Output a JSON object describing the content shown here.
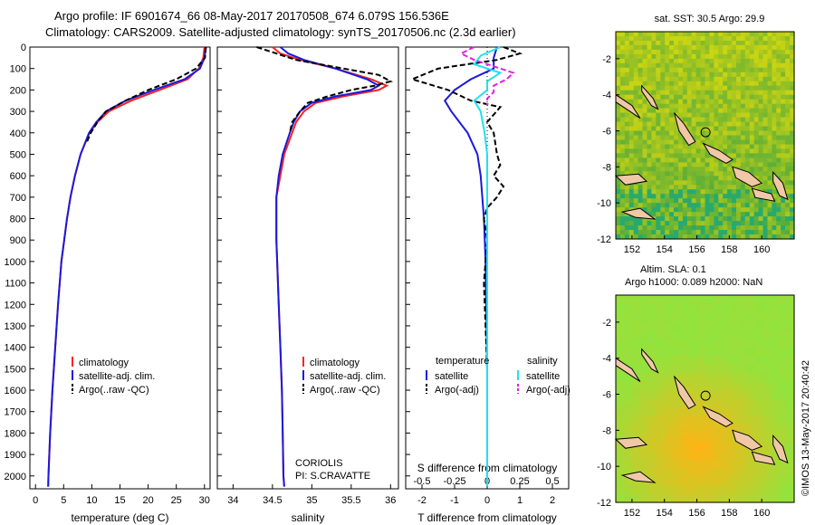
{
  "header": {
    "line1": "Argo profile: IF 6901674_66 08-May-2017 20170508_674 6.079S 156.536E",
    "line2": "Climatology: CARS2009. Satellite-adjusted climatology: synTS_20170506.nc (2.3d earlier)"
  },
  "side_label": "©IMOS 13-May-2017 20:40:42",
  "colors": {
    "climatology": "#ff2020",
    "satellite": "#1a1adc",
    "argo": "#000000",
    "sat_salinity": "#22e0ee",
    "argo_salinity": "#e020e0"
  },
  "chart_data": [
    {
      "type": "line",
      "panel": "temperature",
      "xlabel": "temperature (deg C)",
      "ylabel": "",
      "xlim": [
        -1,
        31
      ],
      "ylim": [
        2060,
        0
      ],
      "xticks": [
        0,
        5,
        10,
        15,
        20,
        25,
        30
      ],
      "xtick_labels": [
        "0",
        "5",
        "10",
        "15",
        "20",
        "25",
        "30"
      ],
      "yticks": [
        0,
        100,
        200,
        300,
        400,
        500,
        600,
        700,
        800,
        900,
        1000,
        1100,
        1200,
        1300,
        1400,
        1500,
        1600,
        1700,
        1800,
        1900,
        2000
      ],
      "ytick_labels": [
        "0",
        "100",
        "200",
        "300",
        "400",
        "500",
        "600",
        "700",
        "800",
        "900",
        "1000",
        "1100",
        "1200",
        "1300",
        "1400",
        "1500",
        "1600",
        "1700",
        "1800",
        "1900",
        "2000"
      ],
      "legend": [
        "climatology",
        "satellite-adj. clim.",
        "Argo(..raw -QC)"
      ],
      "series": [
        {
          "name": "climatology",
          "color": "#ff2020",
          "dash": "",
          "depth": [
            0,
            50,
            100,
            150,
            200,
            250,
            300,
            350,
            400,
            500,
            600,
            700,
            800,
            900,
            1000,
            1200,
            1400,
            1600,
            1800,
            2000,
            2050
          ],
          "values": [
            30.0,
            29.8,
            29.0,
            27.0,
            22.0,
            17.0,
            13.0,
            11.0,
            9.6,
            8.0,
            7.0,
            6.2,
            5.6,
            5.1,
            4.6,
            4.0,
            3.5,
            3.0,
            2.6,
            2.3,
            2.25
          ]
        },
        {
          "name": "satellite-adj. clim.",
          "color": "#1a1adc",
          "dash": "",
          "depth": [
            0,
            50,
            100,
            150,
            200,
            250,
            300,
            350,
            400,
            500,
            600,
            700,
            800,
            900,
            1000,
            1200,
            1400,
            1600,
            1800,
            2000,
            2050
          ],
          "values": [
            30.3,
            30.0,
            29.2,
            26.5,
            21.0,
            16.0,
            12.5,
            10.8,
            9.5,
            8.0,
            7.0,
            6.2,
            5.6,
            5.1,
            4.6,
            4.0,
            3.5,
            3.0,
            2.6,
            2.3,
            2.25
          ]
        },
        {
          "name": "Argo(..raw -QC)",
          "color": "#000000",
          "dash": "6,3",
          "depth": [
            0,
            50,
            100,
            150,
            200,
            250,
            300,
            350,
            400,
            450
          ],
          "values": [
            30.2,
            30.1,
            28.5,
            25.0,
            20.0,
            16.0,
            12.5,
            11.0,
            9.8,
            9.0
          ]
        }
      ]
    },
    {
      "type": "line",
      "panel": "salinity",
      "xlabel": "salinity",
      "ylabel": "",
      "xlim": [
        33.8,
        36.1
      ],
      "ylim": [
        2060,
        0
      ],
      "xticks": [
        34,
        34.5,
        35,
        35.5,
        36
      ],
      "xtick_labels": [
        "34",
        "34.5",
        "35",
        "35.5",
        "36"
      ],
      "legend": [
        "climatology",
        "satellite-adj. clim.",
        "Argo(..raw -QC)"
      ],
      "annotation": [
        "CORIOLIS",
        "PI: S.CRAVATTE"
      ],
      "series": [
        {
          "name": "climatology",
          "color": "#ff2020",
          "dash": "",
          "depth": [
            0,
            30,
            60,
            100,
            150,
            180,
            200,
            230,
            260,
            300,
            350,
            400,
            500,
            600,
            700,
            800,
            900,
            1000,
            1200,
            1400,
            1600,
            1800,
            2000,
            2050
          ],
          "values": [
            34.5,
            34.6,
            34.85,
            35.3,
            35.75,
            35.95,
            35.85,
            35.4,
            35.05,
            34.9,
            34.8,
            34.75,
            34.65,
            34.6,
            34.55,
            34.55,
            34.55,
            34.56,
            34.58,
            34.6,
            34.62,
            34.63,
            34.64,
            34.65
          ]
        },
        {
          "name": "satellite-adj. clim.",
          "color": "#1a1adc",
          "dash": "",
          "depth": [
            0,
            30,
            60,
            100,
            150,
            180,
            200,
            230,
            260,
            300,
            350,
            400,
            500,
            600,
            700,
            800,
            900,
            1000,
            1200,
            1400,
            1600,
            1800,
            2000,
            2050
          ],
          "values": [
            34.6,
            34.7,
            34.9,
            35.3,
            35.7,
            35.85,
            35.75,
            35.3,
            35.0,
            34.85,
            34.77,
            34.72,
            34.63,
            34.58,
            34.55,
            34.55,
            34.55,
            34.56,
            34.58,
            34.6,
            34.62,
            34.63,
            34.64,
            34.65
          ]
        },
        {
          "name": "Argo(..raw -QC)",
          "color": "#000000",
          "dash": "6,3",
          "depth": [
            0,
            30,
            60,
            100,
            130,
            160,
            180,
            200,
            230,
            260,
            300,
            350,
            400
          ],
          "values": [
            34.3,
            34.55,
            34.8,
            35.4,
            35.85,
            36.0,
            35.8,
            35.5,
            35.2,
            34.95,
            34.85,
            34.75,
            34.72
          ]
        }
      ]
    },
    {
      "type": "line",
      "panel": "difference_from_climatology",
      "xlabel": "T difference from climatology",
      "top_label": "S difference from climatology",
      "xlim": [
        -2.5,
        2.5
      ],
      "ylim": [
        2060,
        0
      ],
      "xticks": [
        -2,
        -1,
        0,
        1,
        2
      ],
      "xtick_labels": [
        "-2",
        "-1",
        "0",
        "1",
        "2"
      ],
      "s_xticks": [
        -0.5,
        -0.25,
        0,
        0.25,
        0.5
      ],
      "s_xtick_labels": [
        "-0.5",
        "-0.25",
        "0",
        "0.25",
        "0.5"
      ],
      "legend_temperature_title": "temperature",
      "legend_salinity_title": "salinity",
      "legend": [
        "satellite",
        "Argo(-adj)",
        "satellite",
        "Argo(-adj)"
      ],
      "series": [
        {
          "name": "T satellite",
          "color": "#1a1adc",
          "dash": "",
          "depth": [
            0,
            50,
            100,
            150,
            200,
            250,
            300,
            400,
            500,
            600,
            700,
            800,
            1000,
            1500,
            2000,
            2050
          ],
          "values": [
            0.3,
            0.2,
            0.2,
            -0.5,
            -1.0,
            -1.3,
            -1.1,
            -0.6,
            -0.3,
            -0.2,
            -0.15,
            -0.1,
            -0.05,
            0.0,
            0.0,
            0.0
          ]
        },
        {
          "name": "T Argo(-adj)",
          "color": "#000000",
          "dash": "6,3",
          "depth": [
            0,
            30,
            60,
            100,
            150,
            200,
            250,
            280,
            350,
            400,
            500,
            550,
            600,
            650,
            700,
            750,
            800,
            900,
            1000,
            1100,
            1500,
            2000,
            2050
          ],
          "values": [
            0.5,
            1.0,
            0.3,
            -1.5,
            -2.3,
            -1.2,
            -0.5,
            0.4,
            0.0,
            0.2,
            0.3,
            0.4,
            0.2,
            0.5,
            0.3,
            0.0,
            -0.1,
            0.0,
            -0.05,
            -0.1,
            0.0,
            0.0,
            0.0
          ]
        },
        {
          "name": "S satellite",
          "color": "#22e0ee",
          "dash": "",
          "depth": [
            0,
            40,
            80,
            120,
            160,
            200,
            250,
            300,
            400,
            500,
            600,
            700,
            800,
            1000,
            1200,
            1500,
            1800,
            2000,
            2050
          ],
          "values": [
            0.1,
            -0.05,
            -0.1,
            0.1,
            0.0,
            0.0,
            -0.1,
            -0.05,
            -0.02,
            0.0,
            0.0,
            0.0,
            0.0,
            0.0,
            0.0,
            0.0,
            0.0,
            0.0,
            0.0
          ]
        },
        {
          "name": "S Argo(-adj)",
          "color": "#e020e0",
          "dash": "6,3",
          "depth": [
            0,
            30,
            60,
            90,
            120,
            150,
            180,
            210,
            240,
            270
          ],
          "values": [
            -0.1,
            -0.2,
            -0.1,
            0.05,
            0.2,
            0.15,
            0.05,
            0.05,
            0.0,
            0.0
          ]
        }
      ]
    },
    {
      "type": "heatmap",
      "panel": "map_sst",
      "title": "sat. SST: 30.5  Argo: 29.9",
      "xlim": [
        151,
        162
      ],
      "ylim": [
        -12,
        -0.5
      ],
      "xticks": [
        152,
        154,
        156,
        158,
        160
      ],
      "xtick_labels": [
        "152",
        "154",
        "156",
        "158",
        "160"
      ],
      "yticks": [
        -2,
        -4,
        -6,
        -8,
        -10,
        -12
      ],
      "ytick_labels": [
        "-2",
        "-4",
        "-6",
        "-8",
        "-10",
        "-12"
      ],
      "marker": {
        "lon": 156.536,
        "lat": -6.079
      }
    },
    {
      "type": "heatmap",
      "panel": "map_sla",
      "title": "Altim. SLA: 0.1",
      "subtitle": "Argo h1000: 0.089 h2000: NaN",
      "xlim": [
        151,
        162
      ],
      "ylim": [
        -12,
        -0.5
      ],
      "xticks": [
        152,
        154,
        156,
        158,
        160
      ],
      "xtick_labels": [
        "152",
        "154",
        "156",
        "158",
        "160"
      ],
      "yticks": [
        -2,
        -4,
        -6,
        -8,
        -10,
        -12
      ],
      "ytick_labels": [
        "-2",
        "-4",
        "-6",
        "-8",
        "-10",
        "-12"
      ],
      "marker": {
        "lon": 156.536,
        "lat": -6.079
      }
    }
  ]
}
